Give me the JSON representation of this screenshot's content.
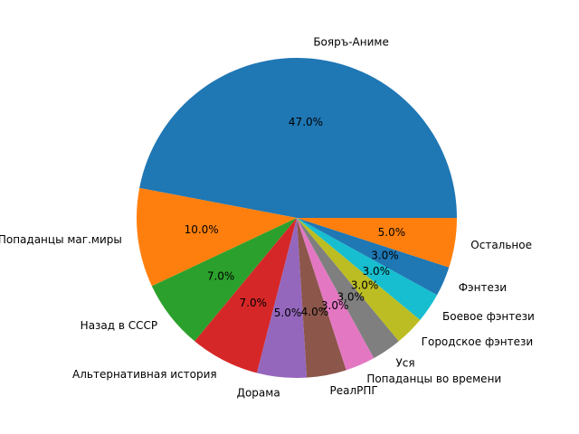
{
  "chart_data": {
    "type": "pie",
    "title": "",
    "start_angle_deg": 0,
    "direction": "counterclockwise",
    "slices": [
      {
        "label": "Бояръ-Аниме",
        "value": 47.0,
        "pct_label": "47.0%",
        "color": "#1f77b4"
      },
      {
        "label": "Попаданцы маг.миры",
        "value": 10.0,
        "pct_label": "10.0%",
        "color": "#ff7f0e"
      },
      {
        "label": "Назад в СССР",
        "value": 7.0,
        "pct_label": "7.0%",
        "color": "#2ca02c"
      },
      {
        "label": "Альтернативная история",
        "value": 7.0,
        "pct_label": "7.0%",
        "color": "#d62728"
      },
      {
        "label": "Дорама",
        "value": 5.0,
        "pct_label": "5.0%",
        "color": "#9467bd"
      },
      {
        "label": "РеалРПГ",
        "value": 4.0,
        "pct_label": "4.0%",
        "color": "#8c564b"
      },
      {
        "label": "Попаданцы во времени",
        "value": 3.0,
        "pct_label": "3.0%",
        "color": "#e377c2"
      },
      {
        "label": "Уся",
        "value": 3.0,
        "pct_label": "3.0%",
        "color": "#7f7f7f"
      },
      {
        "label": "Городское фэнтези",
        "value": 3.0,
        "pct_label": "3.0%",
        "color": "#bcbd22"
      },
      {
        "label": "Боевое фэнтези",
        "value": 3.0,
        "pct_label": "3.0%",
        "color": "#17becf"
      },
      {
        "label": "Фэнтези",
        "value": 3.0,
        "pct_label": "3.0%",
        "color": "#1f77b4"
      },
      {
        "label": "Остальное",
        "value": 5.0,
        "pct_label": "5.0%",
        "color": "#ff7f0e"
      }
    ]
  }
}
